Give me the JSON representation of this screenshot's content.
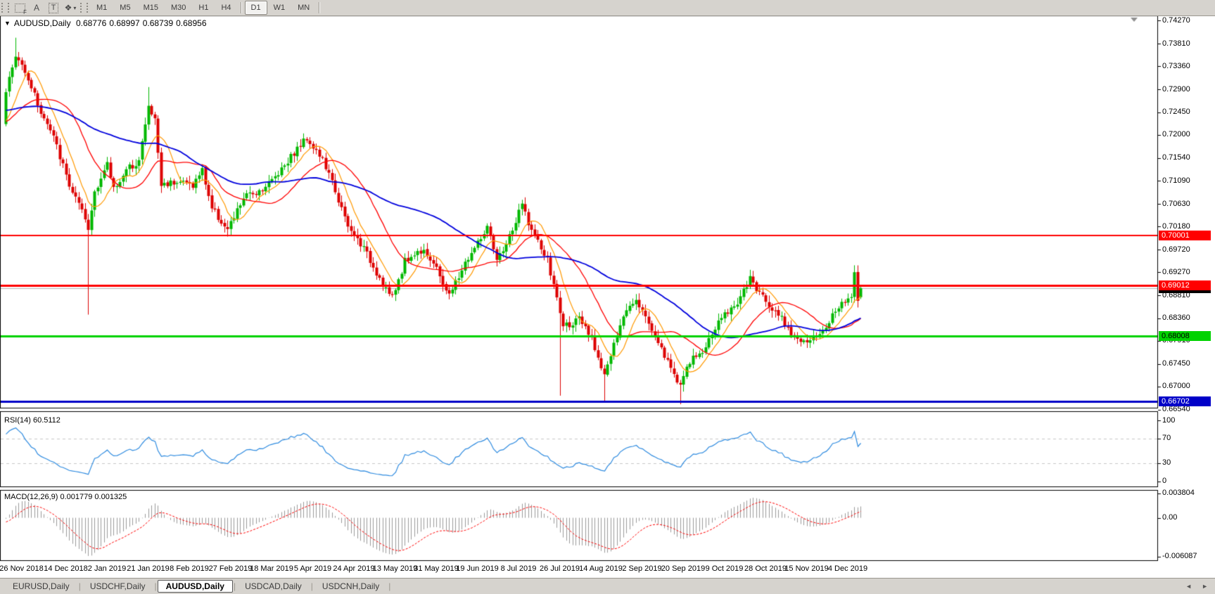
{
  "toolbar": {
    "tools": [
      {
        "name": "chart-frame-icon",
        "glyph": "",
        "badge": "F"
      },
      {
        "name": "text-label-icon",
        "glyph": "A"
      },
      {
        "name": "text-box-icon",
        "glyph": "T",
        "boxed": true
      },
      {
        "name": "arrow-styles-icon",
        "glyph": "❖",
        "caret": "▾"
      }
    ],
    "timeframes": [
      {
        "label": "M1"
      },
      {
        "label": "M5"
      },
      {
        "label": "M15"
      },
      {
        "label": "M30"
      },
      {
        "label": "H1"
      },
      {
        "label": "H4"
      },
      {
        "label": "D1",
        "active": true
      },
      {
        "label": "W1"
      },
      {
        "label": "MN"
      }
    ]
  },
  "chart": {
    "dropdown_glyph": "▼",
    "symbol": "AUDUSD,Daily",
    "open": "0.68776",
    "high": "0.68997",
    "low": "0.68739",
    "close": "0.68956"
  },
  "chart_data": {
    "type": "candlestick",
    "symbol": "AUDUSD",
    "timeframe": "Daily",
    "bars_total": 271,
    "ohlc": {
      "open": 0.68776,
      "high": 0.68997,
      "low": 0.68739,
      "close": 0.68956
    },
    "price_axis": {
      "ticks": [
        "0.74270",
        "0.73810",
        "0.73360",
        "0.72900",
        "0.72450",
        "0.72000",
        "0.71540",
        "0.71090",
        "0.70630",
        "0.70180",
        "0.69720",
        "0.69270",
        "0.68810",
        "0.68360",
        "0.67910",
        "0.67450",
        "0.67000",
        "0.66540"
      ],
      "min": 0.6654,
      "max": 0.7427
    },
    "x_axis": {
      "labels": [
        {
          "text": "26 Nov 2018",
          "bar": 5
        },
        {
          "text": "14 Dec 2018",
          "bar": 19
        },
        {
          "text": "2 Jan 2019",
          "bar": 32
        },
        {
          "text": "21 Jan 2019",
          "bar": 45
        },
        {
          "text": "8 Feb 2019",
          "bar": 58
        },
        {
          "text": "27 Feb 2019",
          "bar": 71
        },
        {
          "text": "18 Mar 2019",
          "bar": 84
        },
        {
          "text": "5 Apr 2019",
          "bar": 97
        },
        {
          "text": "24 Apr 2019",
          "bar": 110
        },
        {
          "text": "13 May 2019",
          "bar": 123
        },
        {
          "text": "31 May 2019",
          "bar": 136
        },
        {
          "text": "19 Jun 2019",
          "bar": 149
        },
        {
          "text": "8 Jul 2019",
          "bar": 162
        },
        {
          "text": "26 Jul 2019",
          "bar": 175
        },
        {
          "text": "14 Aug 2019",
          "bar": 188
        },
        {
          "text": "2 Sep 2019",
          "bar": 201
        },
        {
          "text": "20 Sep 2019",
          "bar": 214
        },
        {
          "text": "9 Oct 2019",
          "bar": 227
        },
        {
          "text": "28 Oct 2019",
          "bar": 240
        },
        {
          "text": "15 Nov 2019",
          "bar": 253
        },
        {
          "text": "4 Dec 2019",
          "bar": 266
        }
      ]
    },
    "price_path": [
      [
        0,
        0.729
      ],
      [
        3,
        0.7355
      ],
      [
        6,
        0.733
      ],
      [
        11,
        0.7245
      ],
      [
        15,
        0.7195
      ],
      [
        20,
        0.71
      ],
      [
        23,
        0.706
      ],
      [
        25,
        0.703
      ],
      [
        26,
        0.701
      ],
      [
        28,
        0.709
      ],
      [
        32,
        0.714
      ],
      [
        34,
        0.7095
      ],
      [
        39,
        0.7135
      ],
      [
        42,
        0.715
      ],
      [
        45,
        0.7255
      ],
      [
        47,
        0.723
      ],
      [
        49,
        0.71
      ],
      [
        54,
        0.711
      ],
      [
        59,
        0.71
      ],
      [
        62,
        0.713
      ],
      [
        65,
        0.7055
      ],
      [
        70,
        0.701
      ],
      [
        75,
        0.7075
      ],
      [
        80,
        0.709
      ],
      [
        84,
        0.711
      ],
      [
        89,
        0.715
      ],
      [
        95,
        0.7195
      ],
      [
        100,
        0.715
      ],
      [
        104,
        0.709
      ],
      [
        108,
        0.7015
      ],
      [
        112,
        0.6985
      ],
      [
        119,
        0.6905
      ],
      [
        122,
        0.6875
      ],
      [
        126,
        0.695
      ],
      [
        132,
        0.6975
      ],
      [
        137,
        0.692
      ],
      [
        140,
        0.688
      ],
      [
        145,
        0.6945
      ],
      [
        152,
        0.7015
      ],
      [
        155,
        0.6948
      ],
      [
        160,
        0.701
      ],
      [
        163,
        0.7062
      ],
      [
        166,
        0.701
      ],
      [
        171,
        0.695
      ],
      [
        174,
        0.6875
      ],
      [
        176,
        0.682
      ],
      [
        181,
        0.6832
      ],
      [
        185,
        0.6795
      ],
      [
        189,
        0.6725
      ],
      [
        192,
        0.678
      ],
      [
        196,
        0.6855
      ],
      [
        199,
        0.6878
      ],
      [
        202,
        0.6838
      ],
      [
        206,
        0.679
      ],
      [
        210,
        0.6735
      ],
      [
        213,
        0.6705
      ],
      [
        216,
        0.6748
      ],
      [
        221,
        0.6778
      ],
      [
        225,
        0.683
      ],
      [
        231,
        0.6868
      ],
      [
        235,
        0.6912
      ],
      [
        240,
        0.687
      ],
      [
        244,
        0.6845
      ],
      [
        249,
        0.68
      ],
      [
        253,
        0.6782
      ],
      [
        258,
        0.6812
      ],
      [
        262,
        0.685
      ],
      [
        265,
        0.687
      ],
      [
        267,
        0.6885
      ],
      [
        268,
        0.693
      ],
      [
        269,
        0.68776
      ],
      [
        270,
        0.68956
      ]
    ],
    "spikes": [
      [
        3,
        "high",
        0.7393
      ],
      [
        26,
        "low",
        0.6843
      ],
      [
        45,
        "high",
        0.7295
      ],
      [
        70,
        "low",
        0.6998
      ],
      [
        175,
        "low",
        0.6682
      ],
      [
        189,
        "low",
        0.66702
      ],
      [
        213,
        "low",
        0.6665
      ],
      [
        235,
        "high",
        0.6932
      ],
      [
        268,
        "high",
        0.6941
      ]
    ],
    "horizontal_lines": [
      {
        "price": 0.70001,
        "label": "0.70001",
        "color": "#ff0000",
        "width": 2,
        "text": "#ffffff"
      },
      {
        "price": 0.69012,
        "label": "0.69012",
        "color": "#ff0000",
        "width": 3,
        "text": "#ffffff"
      },
      {
        "price": 0.68008,
        "label": "0.68008",
        "color": "#00d200",
        "width": 3,
        "text": "#000000"
      },
      {
        "price": 0.66702,
        "label": "0.66702",
        "color": "#0000c8",
        "width": 3,
        "text": "#ffffff"
      }
    ],
    "bid_line": {
      "price": 0.68956,
      "label": "0.68956",
      "color": "#b4b4b4",
      "box": "#000000",
      "text": "#ffffff"
    },
    "ma_lines": [
      {
        "name": "fast",
        "period": 8,
        "color": "#ff9900"
      },
      {
        "name": "medium",
        "period": 21,
        "color": "#ff0000"
      },
      {
        "name": "slow",
        "period": 55,
        "color": "#0000dd"
      }
    ],
    "indicators": {
      "rsi": {
        "label": "RSI(14) 60.5112",
        "period": 14,
        "value": 60.5112,
        "color": "#2e8be0",
        "level_color": "#c8c8c8",
        "levels": [
          70,
          30
        ],
        "ticks": [
          {
            "label": "100",
            "v": 100
          },
          {
            "label": "70",
            "v": 70
          },
          {
            "label": "30",
            "v": 30
          },
          {
            "label": "0",
            "v": 0
          }
        ]
      },
      "macd": {
        "label": "MACD(12,26,9) 0.001779 0.001325",
        "fast": 12,
        "slow": 26,
        "signal_period": 9,
        "main_value": 0.001779,
        "signal_value": 0.001325,
        "hist_color": "#9a9a9a",
        "signal_color": "#ff0000",
        "ticks": [
          {
            "label": "0.003804",
            "v": 0.003804
          },
          {
            "label": "0.00",
            "v": 0
          },
          {
            "label": "-0.006087",
            "v": -0.006087
          }
        ]
      }
    },
    "colors": {
      "bull": "#00b800",
      "bear": "#dd0000",
      "background": "#ffffff",
      "border": "#000000"
    }
  },
  "tab_bar": {
    "tabs": [
      {
        "label": "EURUSD,Daily"
      },
      {
        "label": "USDCHF,Daily"
      },
      {
        "label": "AUDUSD,Daily",
        "active": true
      },
      {
        "label": "USDCAD,Daily"
      },
      {
        "label": "USDCNH,Daily"
      }
    ],
    "separator": "|",
    "scroll_left": "◄",
    "scroll_right": "►"
  }
}
